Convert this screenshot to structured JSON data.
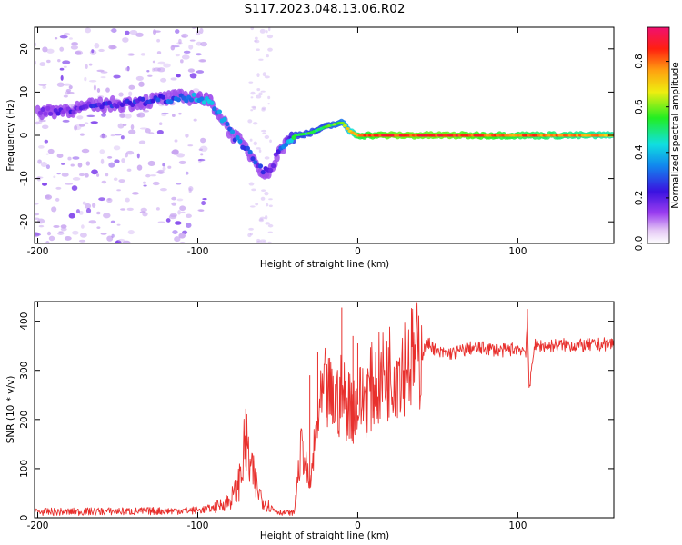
{
  "title": "S117.2023.048.13.06.R02",
  "colors": {
    "spectrogram_main": "#3a12e0",
    "spectrogram_scatter": "#b38ce8",
    "snr_line": "#e8302d"
  },
  "chart_data": [
    {
      "type": "heatmap",
      "xlabel": "Height of straight line (km)",
      "ylabel": "Frequency (Hz)",
      "xlim": [
        -202,
        160
      ],
      "ylim": [
        -25,
        25
      ],
      "x_ticks": [
        -200,
        -100,
        0,
        100
      ],
      "x_tick_labels": [
        "-200",
        "-100",
        "0",
        "100"
      ],
      "y_ticks": [
        -20,
        -10,
        0,
        10,
        20
      ],
      "y_tick_labels": [
        "-20",
        "-10",
        "0",
        "10",
        "20"
      ],
      "grid": false,
      "colorbar": {
        "label": "Normalized spectral amplitude",
        "range": [
          0,
          0.95
        ],
        "ticks": [
          0.0,
          0.2,
          0.4,
          0.6,
          0.8
        ],
        "tick_labels": [
          "0.0",
          "0.2",
          "0.4",
          "0.6",
          "0.8"
        ],
        "colormap": "rainbow (white–purple–blue–cyan–green–yellow–orange–red–pink)"
      },
      "ridge": {
        "x": [
          -200,
          -180,
          -160,
          -140,
          -120,
          -100,
          -90,
          -80,
          -70,
          -60,
          -55,
          -50,
          -45,
          -40,
          -30,
          -20,
          -10,
          -5,
          0,
          20,
          60,
          100,
          160
        ],
        "y": [
          5.5,
          6,
          7,
          7.5,
          8.5,
          9,
          7,
          1,
          -3,
          -8,
          -9,
          -4,
          -2,
          0,
          0.5,
          2,
          3,
          1,
          0,
          0,
          0,
          0,
          0
        ],
        "amplitude": [
          0.2,
          0.25,
          0.3,
          0.3,
          0.35,
          0.45,
          0.45,
          0.4,
          0.35,
          0.3,
          0.25,
          0.3,
          0.45,
          0.6,
          0.6,
          0.6,
          0.65,
          0.75,
          0.85,
          0.9,
          0.9,
          0.85,
          0.8
        ]
      },
      "scatter_region_x": [
        -202,
        -95
      ]
    },
    {
      "type": "line",
      "xlabel": "Height of straight line (km)",
      "ylabel": "SNR (10 * v/v)",
      "xlim": [
        -202,
        160
      ],
      "ylim": [
        0,
        440
      ],
      "x_ticks": [
        -200,
        -100,
        0,
        100
      ],
      "x_tick_labels": [
        "-200",
        "-100",
        "0",
        "100"
      ],
      "y_ticks": [
        0,
        100,
        200,
        300,
        400
      ],
      "y_tick_labels": [
        "0",
        "100",
        "200",
        "300",
        "400"
      ],
      "grid": false,
      "series": [
        {
          "x": [
            -202,
            -180,
            -160,
            -140,
            -120,
            -100,
            -90,
            -80,
            -75,
            -70,
            -67,
            -63,
            -58,
            -52,
            -47,
            -40,
            -35,
            -30,
            -25,
            -20,
            -15,
            -10,
            -5,
            0,
            10,
            20,
            30,
            40,
            42,
            45,
            50,
            60,
            70,
            80,
            90,
            100,
            105,
            106,
            107,
            110,
            120,
            130,
            140,
            150,
            160
          ],
          "y": [
            12,
            12,
            13,
            13,
            14,
            15,
            20,
            35,
            60,
            150,
            100,
            60,
            30,
            15,
            10,
            10,
            150,
            60,
            200,
            260,
            230,
            250,
            230,
            230,
            270,
            300,
            320,
            330,
            345,
            355,
            335,
            335,
            345,
            345,
            340,
            345,
            340,
            415,
            250,
            350,
            350,
            352,
            350,
            352,
            355
          ]
        }
      ],
      "spikes": [
        {
          "x": -70,
          "y": 222
        },
        {
          "x": -30,
          "y": 290
        },
        {
          "x": -25,
          "y": 338
        },
        {
          "x": -10,
          "y": 428
        },
        {
          "x": -3,
          "y": 370
        },
        {
          "x": 0,
          "y": 355
        },
        {
          "x": 106,
          "y": 425
        },
        {
          "x": 107,
          "y": 248
        }
      ]
    }
  ]
}
